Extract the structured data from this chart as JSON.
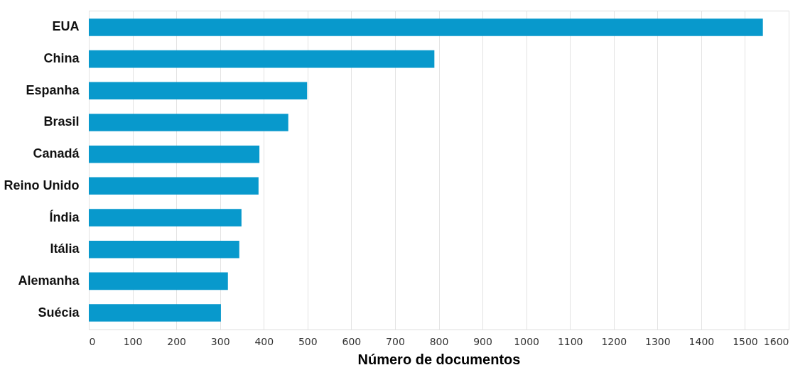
{
  "chart_data": {
    "type": "bar",
    "orientation": "horizontal",
    "xlabel": "Número de documentos",
    "categories": [
      "EUA",
      "China",
      "Espanha",
      "Brasil",
      "Canadá",
      "Reino Unido",
      "Índia",
      "Itália",
      "Alemanha",
      "Suécia"
    ],
    "values": [
      1541,
      790,
      499,
      456,
      390,
      388,
      349,
      344,
      318,
      302
    ],
    "color": "#0899cc",
    "xlim": [
      0,
      1600
    ],
    "xticks": [
      0,
      100,
      200,
      300,
      400,
      500,
      600,
      700,
      800,
      900,
      1000,
      1100,
      1200,
      1300,
      1400,
      1500,
      1600
    ],
    "grid": "x"
  }
}
